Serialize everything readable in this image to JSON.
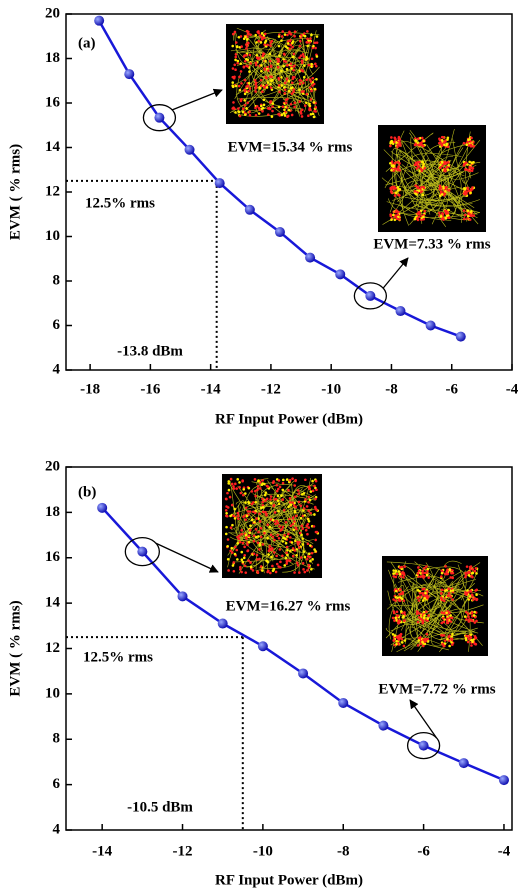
{
  "chart_data": [
    {
      "type": "line",
      "xlabel": "RF Input Power (dBm)",
      "ylabel": "EVM ( % rms)",
      "x": [
        -17.7,
        -16.7,
        -15.7,
        -14.7,
        -13.7,
        -12.7,
        -11.7,
        -10.7,
        -9.7,
        -8.7,
        -7.7,
        -6.7,
        -5.7
      ],
      "values": [
        19.7,
        17.3,
        15.34,
        13.9,
        12.4,
        11.2,
        10.2,
        9.05,
        8.3,
        7.33,
        6.65,
        6.0,
        5.5
      ],
      "color": "#1818d8",
      "xlim": [
        -18.8,
        -4
      ],
      "ylim": [
        4,
        20
      ],
      "xticks": [
        -18,
        -16,
        -14,
        -12,
        -10,
        -8,
        -6,
        -4
      ],
      "yticks": [
        4,
        6,
        8,
        10,
        12,
        14,
        16,
        18,
        20
      ],
      "threshold": {
        "x": -13.8,
        "y": 12.5
      },
      "annotations": [
        "(a)",
        "EVM=15.34 % rms",
        "EVM=7.33 % rms",
        "12.5% rms",
        "-13.8 dBm"
      ]
    },
    {
      "type": "line",
      "xlabel": "RF Input Power (dBm)",
      "ylabel": "EVM ( % rms)",
      "x": [
        -14,
        -13,
        -12,
        -11,
        -10,
        -9,
        -8,
        -7,
        -6,
        -5,
        -4
      ],
      "values": [
        18.2,
        16.27,
        14.3,
        13.1,
        12.1,
        10.9,
        9.6,
        8.6,
        7.72,
        6.95,
        6.2
      ],
      "color": "#1818d8",
      "xlim": [
        -14.9,
        -3.8
      ],
      "ylim": [
        4,
        20
      ],
      "xticks": [
        -14,
        -12,
        -10,
        -8,
        -6,
        -4
      ],
      "yticks": [
        4,
        6,
        8,
        10,
        12,
        14,
        16,
        18,
        20
      ],
      "threshold": {
        "x": -10.5,
        "y": 12.5
      },
      "annotations": [
        "(b)",
        "EVM=16.27 % rms",
        "EVM=7.72 % rms",
        "12.5% rms",
        "-10.5 dBm"
      ]
    }
  ]
}
